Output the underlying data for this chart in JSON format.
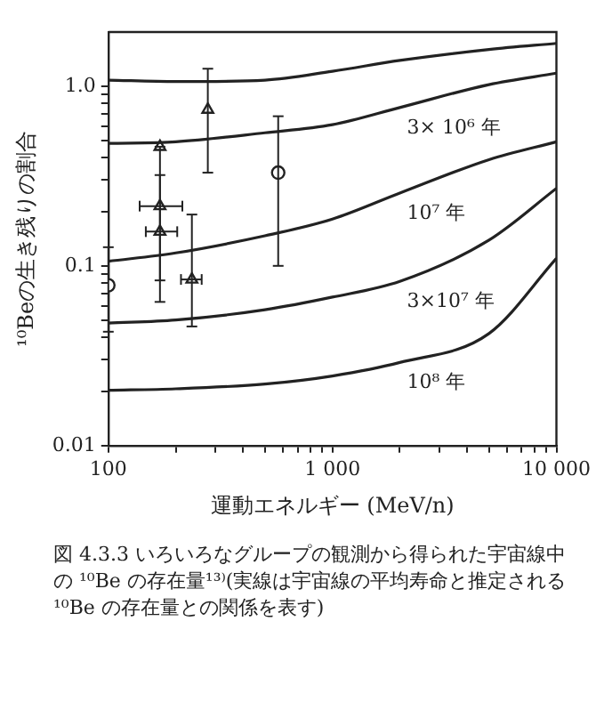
{
  "chart_data": {
    "type": "line",
    "xlabel": "運動エネルギー (MeV/n)",
    "ylabel": "¹⁰Beの生き残りの割合",
    "log": "xy",
    "grid": false,
    "legend": false,
    "xlim": [
      100,
      10000
    ],
    "ylim": [
      0.01,
      2
    ],
    "xticks": [
      {
        "value": 100,
        "label": "100"
      },
      {
        "value": 200,
        "label": null
      },
      {
        "value": 300,
        "label": null
      },
      {
        "value": 400,
        "label": null
      },
      {
        "value": 500,
        "label": null
      },
      {
        "value": 600,
        "label": null
      },
      {
        "value": 700,
        "label": null
      },
      {
        "value": 800,
        "label": null
      },
      {
        "value": 900,
        "label": null
      },
      {
        "value": 1000,
        "label": "1 000"
      },
      {
        "value": 2000,
        "label": null
      },
      {
        "value": 3000,
        "label": null
      },
      {
        "value": 4000,
        "label": null
      },
      {
        "value": 5000,
        "label": null
      },
      {
        "value": 6000,
        "label": null
      },
      {
        "value": 7000,
        "label": null
      },
      {
        "value": 8000,
        "label": null
      },
      {
        "value": 9000,
        "label": null
      },
      {
        "value": 10000,
        "label": "10 000"
      }
    ],
    "yticks": [
      0.01,
      {
        "value": 0.02,
        "label": null
      },
      {
        "value": 0.03,
        "label": null
      },
      {
        "value": 0.04,
        "label": null
      },
      {
        "value": 0.05,
        "label": null
      },
      {
        "value": 0.06,
        "label": null
      },
      {
        "value": 0.07,
        "label": null
      },
      {
        "value": 0.08,
        "label": null
      },
      {
        "value": 0.09,
        "label": null
      },
      0.1,
      {
        "value": 0.2,
        "label": null
      },
      {
        "value": 0.3,
        "label": null
      },
      {
        "value": 0.4,
        "label": null
      },
      {
        "value": 0.5,
        "label": null
      },
      {
        "value": 0.6,
        "label": null
      },
      {
        "value": 0.7,
        "label": null
      },
      {
        "value": 0.8,
        "label": null
      },
      {
        "value": 0.9,
        "label": null
      },
      {
        "value": 1,
        "label": "1.0"
      }
    ],
    "series": [
      {
        "color": "#222222",
        "x": [
          100,
          200,
          500,
          1000,
          2000,
          5000,
          10000
        ],
        "values": [
          1.08,
          1.06,
          1.08,
          1.21,
          1.39,
          1.6,
          1.73
        ]
      },
      {
        "name": "3× 10⁶ 年",
        "color": "#222222",
        "x": [
          100,
          200,
          500,
          1000,
          2000,
          5000,
          10000
        ],
        "values": [
          0.48,
          0.49,
          0.55,
          0.61,
          0.76,
          1.02,
          1.18
        ]
      },
      {
        "name": "10⁷ 年",
        "color": "#222222",
        "x": [
          100,
          200,
          500,
          1000,
          2000,
          5000,
          10000
        ],
        "values": [
          0.106,
          0.118,
          0.147,
          0.182,
          0.254,
          0.39,
          0.49
        ]
      },
      {
        "name": "3×10⁷ 年",
        "color": "#222222",
        "x": [
          100,
          200,
          500,
          1000,
          2000,
          5000,
          10000
        ],
        "values": [
          0.048,
          0.05,
          0.057,
          0.067,
          0.082,
          0.139,
          0.27
        ]
      },
      {
        "name": "10⁸ 年",
        "color": "#222222",
        "x": [
          100,
          200,
          500,
          1000,
          2000,
          5000,
          10000
        ],
        "values": [
          0.0203,
          0.0207,
          0.022,
          0.0244,
          0.029,
          0.042,
          0.11
        ]
      },
      {
        "type": "scatter",
        "marker": "circle",
        "color": "#222222",
        "x": [
          100,
          573
        ],
        "values": [
          0.078,
          0.33
        ],
        "errors": [
          [
            0.043,
            0.127
          ],
          [
            0.1,
            0.68
          ]
        ]
      },
      {
        "type": "scatter",
        "marker": "triangle",
        "color": "#222222",
        "x": [
          170,
          278
        ],
        "values": [
          0.46,
          0.74
        ],
        "errors": [
          null,
          [
            0.33,
            1.25
          ]
        ]
      },
      {
        "type": "scatter",
        "marker": "triangle",
        "color": "#222222",
        "x": [
          170,
          170,
          236
        ],
        "values": [
          0.215,
          0.155,
          0.084
        ],
        "errors": [
          [
            0.063,
            0.46
          ],
          [
            0.083,
            0.32
          ],
          [
            0.046,
            0.193
          ]
        ],
        "xerrors": [
          [
            138,
            214
          ],
          [
            147,
            203
          ],
          [
            211,
            261
          ]
        ]
      }
    ],
    "annotations": [
      "図 4.3.3 いろいろなグループの観測から得られた宇宙線中の ¹⁰Be の存在量¹³⁾(実線は宇宙線の平均寿命と推定される ¹⁰Be の存在量との関係を表す)"
    ]
  }
}
